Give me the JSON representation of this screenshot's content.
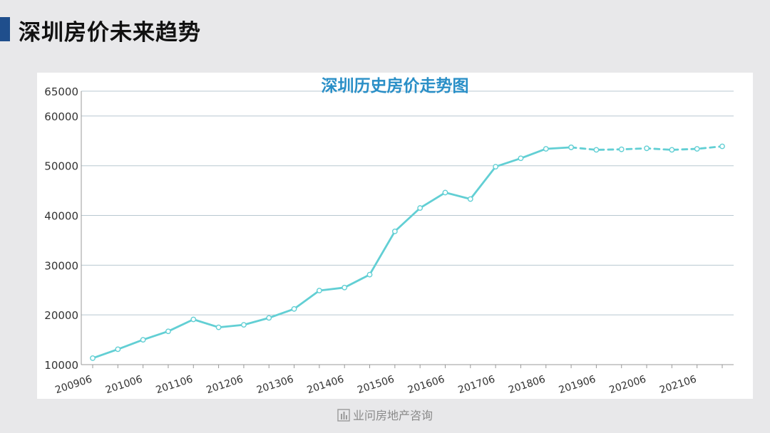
{
  "page": {
    "title": "深圳房价未来趋势"
  },
  "footer": {
    "brand": "业问房地产咨询",
    "logo_icon": "building-icon"
  },
  "chart_data": {
    "type": "line",
    "title": "深圳历史房价走势图",
    "xlabel": "",
    "ylabel": "",
    "ylim": [
      10000,
      65000
    ],
    "yticks": [
      10000,
      20000,
      30000,
      40000,
      50000,
      60000,
      65000
    ],
    "grid": true,
    "colors": {
      "line": "#62cfd4",
      "title": "#2a8fc7",
      "grid": "#b8c8d0"
    },
    "x_tick_labels": [
      "200906",
      "201006",
      "201106",
      "201206",
      "201306",
      "201406",
      "201506",
      "201606",
      "201706",
      "201806",
      "201906",
      "202006",
      "202106"
    ],
    "series": [
      {
        "style": "solid",
        "x": [
          "200906",
          "200912",
          "201006",
          "201012",
          "201106",
          "201112",
          "201206",
          "201212",
          "201306",
          "201312",
          "201406",
          "201412",
          "201506",
          "201512",
          "201606",
          "201612",
          "201706",
          "201712",
          "201806",
          "201812"
        ],
        "values": [
          11300,
          13100,
          15000,
          16700,
          19100,
          17500,
          18000,
          19400,
          21200,
          24900,
          25500,
          28100,
          36800,
          41500,
          44600,
          43300,
          49800,
          51500,
          53400,
          53700
        ]
      },
      {
        "style": "dashed",
        "x": [
          "201812",
          "201906",
          "201912",
          "202006",
          "202012",
          "202106",
          "202112"
        ],
        "values": [
          53700,
          53200,
          53300,
          53500,
          53200,
          53400,
          53900
        ]
      }
    ]
  }
}
